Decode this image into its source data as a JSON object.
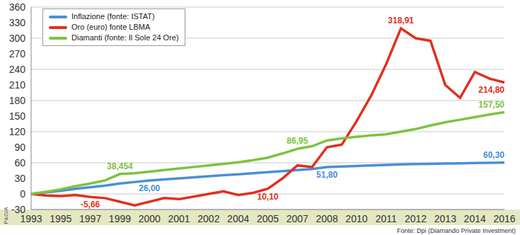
{
  "chart_data": {
    "type": "line",
    "source": "Fonte: Dpi (Diamando Private Investment)",
    "side_label": "P&G/A",
    "categories": [
      "1993",
      null,
      "1995",
      null,
      "1997",
      null,
      "1999",
      null,
      "2000",
      null,
      "2001",
      null,
      "2002",
      null,
      "2004",
      null,
      "2005",
      null,
      "2007",
      null,
      "2008",
      null,
      "2010",
      null,
      "2011",
      null,
      "2012",
      null,
      "2013",
      null,
      "2014",
      null,
      "2016"
    ],
    "series": [
      {
        "name": "Inflazione (fonte: ISTAT)",
        "color": "#4a8fd6",
        "values": [
          0,
          3,
          6,
          10,
          13,
          16,
          20,
          23,
          26,
          28,
          30,
          32,
          34,
          36,
          38,
          40,
          42,
          44,
          46,
          48,
          51.8,
          53,
          54,
          55,
          56,
          57,
          57.5,
          58,
          58.5,
          59,
          59.5,
          60,
          60.3
        ],
        "value_labels": [
          null,
          null,
          null,
          null,
          null,
          null,
          null,
          null,
          "26,00",
          null,
          null,
          null,
          null,
          null,
          null,
          null,
          null,
          null,
          null,
          null,
          "51,80",
          null,
          null,
          null,
          null,
          null,
          null,
          null,
          null,
          null,
          null,
          null,
          "60,30"
        ]
      },
      {
        "name": "Oro (euro) fonte LBMA",
        "color": "#e0301e",
        "values": [
          0,
          -3,
          -4,
          -2,
          -5.66,
          -8,
          -15,
          -22,
          -15,
          -8,
          -10,
          -5,
          0,
          5,
          -2,
          2,
          10.1,
          30,
          55,
          52,
          90,
          95,
          140,
          190,
          250,
          318.91,
          300,
          295,
          210,
          185,
          235,
          222,
          214.8
        ],
        "value_labels": [
          null,
          null,
          null,
          null,
          "-5,66",
          null,
          null,
          null,
          null,
          null,
          null,
          null,
          null,
          null,
          null,
          null,
          "10,10",
          null,
          null,
          null,
          null,
          null,
          null,
          null,
          null,
          "318,91",
          null,
          null,
          null,
          null,
          null,
          null,
          "214,80"
        ]
      },
      {
        "name": "Diamanti (fonte: Il Sole 24 Ore)",
        "color": "#7dc242",
        "values": [
          0,
          4,
          9,
          15,
          20,
          26,
          38.454,
          40,
          43,
          46,
          49,
          52,
          55,
          58,
          61,
          65,
          70,
          78,
          86.95,
          92,
          103,
          107,
          110,
          113,
          115,
          120,
          125,
          132,
          138,
          143,
          148,
          153,
          157.5
        ],
        "value_labels": [
          null,
          null,
          null,
          null,
          null,
          null,
          "38,454",
          null,
          null,
          null,
          null,
          null,
          null,
          null,
          null,
          null,
          null,
          null,
          "86,95",
          null,
          null,
          null,
          null,
          null,
          null,
          null,
          null,
          null,
          null,
          null,
          null,
          null,
          "157,50"
        ]
      }
    ],
    "ylim": [
      -30,
      360
    ],
    "yticks": [
      -30,
      0,
      30,
      60,
      90,
      120,
      150,
      180,
      210,
      240,
      270,
      300,
      330,
      360
    ],
    "grid": true,
    "legend": "top-left",
    "data_labels": true
  }
}
